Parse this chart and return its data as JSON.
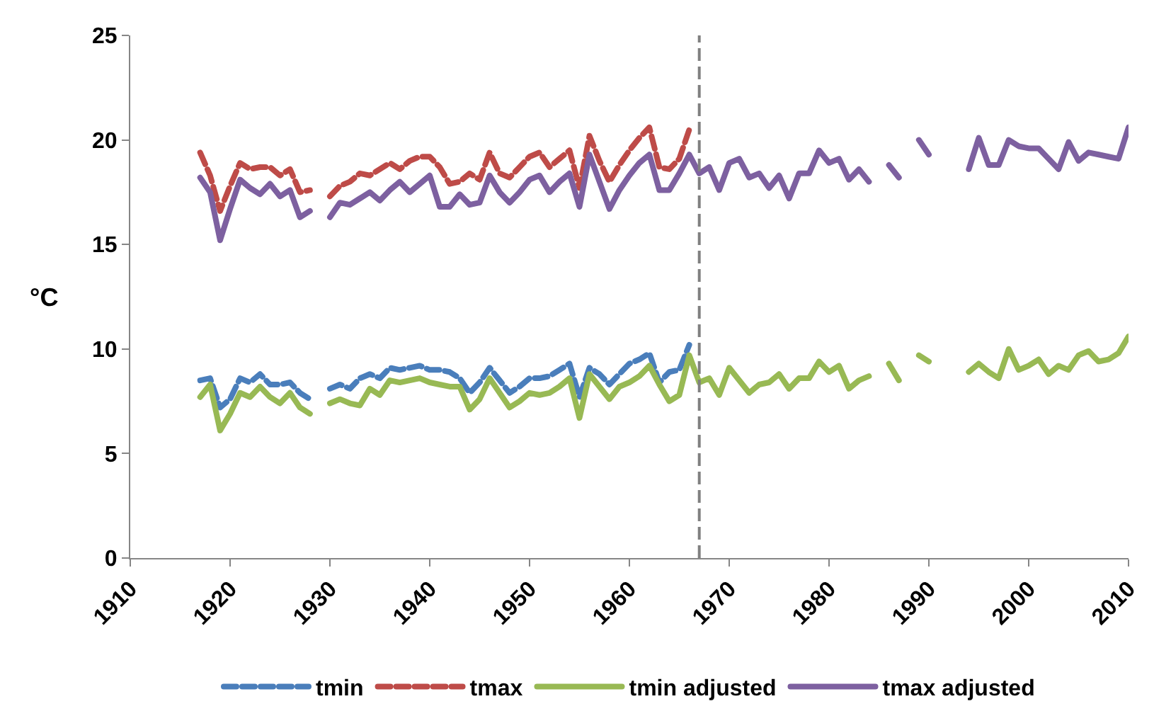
{
  "chart_data": {
    "type": "line",
    "ylabel": "°C",
    "x": [
      1917,
      1918,
      1919,
      1920,
      1921,
      1922,
      1923,
      1924,
      1925,
      1926,
      1927,
      1928,
      1929,
      1930,
      1931,
      1932,
      1933,
      1934,
      1935,
      1936,
      1937,
      1938,
      1939,
      1940,
      1941,
      1942,
      1943,
      1944,
      1945,
      1946,
      1947,
      1948,
      1949,
      1950,
      1951,
      1952,
      1953,
      1954,
      1955,
      1956,
      1957,
      1958,
      1959,
      1960,
      1961,
      1962,
      1963,
      1964,
      1965,
      1966,
      1967,
      1968,
      1969,
      1970,
      1971,
      1972,
      1973,
      1974,
      1975,
      1976,
      1977,
      1978,
      1979,
      1980,
      1981,
      1982,
      1983,
      1984,
      1985,
      1986,
      1987,
      1988,
      1989,
      1990,
      1991,
      1992,
      1993,
      1994,
      1995,
      1996,
      1997,
      1998,
      1999,
      2000,
      2001,
      2002,
      2003,
      2004,
      2005,
      2006,
      2007,
      2008,
      2009,
      2010
    ],
    "series": [
      {
        "name": "tmin",
        "color": "#4a7ebb",
        "line_style": "dashed",
        "values": [
          8.5,
          8.6,
          7.2,
          7.6,
          8.6,
          8.4,
          8.8,
          8.3,
          8.3,
          8.4,
          7.9,
          7.6,
          null,
          8.1,
          8.3,
          8.1,
          8.6,
          8.8,
          8.6,
          9.1,
          9.0,
          9.1,
          9.2,
          9.0,
          9.0,
          8.9,
          8.6,
          7.9,
          8.4,
          9.1,
          8.5,
          7.9,
          8.2,
          8.6,
          8.6,
          8.7,
          9.0,
          9.3,
          7.7,
          9.1,
          8.8,
          8.3,
          8.8,
          9.3,
          9.5,
          9.8,
          8.4,
          8.9,
          9.0,
          10.2,
          null,
          null,
          null,
          null,
          null,
          null,
          null,
          null,
          null,
          null,
          null,
          null,
          null,
          null,
          null,
          null,
          null,
          null,
          null,
          null,
          null,
          null,
          null,
          null,
          null,
          null,
          null,
          null,
          null,
          null,
          null,
          null,
          null,
          null,
          null,
          null,
          null,
          null,
          null,
          null,
          null,
          null,
          null,
          null
        ]
      },
      {
        "name": "tmax",
        "color": "#be4b48",
        "line_style": "dashed",
        "values": [
          19.4,
          18.3,
          16.6,
          17.8,
          18.9,
          18.6,
          18.7,
          18.7,
          18.3,
          18.6,
          17.5,
          17.6,
          null,
          17.3,
          17.8,
          18.0,
          18.4,
          18.3,
          18.6,
          18.9,
          18.6,
          19.0,
          19.2,
          19.2,
          18.7,
          17.9,
          18.0,
          18.4,
          18.1,
          19.4,
          18.4,
          18.2,
          18.7,
          19.2,
          19.4,
          18.7,
          19.1,
          19.5,
          17.7,
          20.2,
          19.0,
          18.0,
          18.8,
          19.5,
          20.1,
          20.6,
          18.7,
          18.6,
          19.1,
          20.5,
          null,
          null,
          null,
          null,
          null,
          null,
          null,
          null,
          null,
          null,
          null,
          null,
          null,
          null,
          null,
          null,
          null,
          null,
          null,
          null,
          null,
          null,
          null,
          null,
          null,
          null,
          null,
          null,
          null,
          null,
          null,
          null,
          null,
          null,
          null,
          null,
          null,
          null,
          null,
          null,
          null,
          null,
          null,
          null
        ]
      },
      {
        "name": "tmin adjusted",
        "color": "#98b954",
        "line_style": "solid",
        "values": [
          7.7,
          8.3,
          6.1,
          6.9,
          7.9,
          7.7,
          8.2,
          7.7,
          7.4,
          7.9,
          7.2,
          6.9,
          null,
          7.4,
          7.6,
          7.4,
          7.3,
          8.1,
          7.8,
          8.5,
          8.4,
          8.5,
          8.6,
          8.4,
          8.3,
          8.2,
          8.2,
          7.1,
          7.6,
          8.6,
          7.9,
          7.2,
          7.5,
          7.9,
          7.8,
          7.9,
          8.2,
          8.6,
          6.7,
          8.8,
          8.2,
          7.6,
          8.2,
          8.4,
          8.7,
          9.2,
          8.3,
          7.5,
          7.8,
          9.7,
          8.4,
          8.6,
          7.8,
          9.1,
          8.5,
          7.9,
          8.3,
          8.4,
          8.8,
          8.1,
          8.6,
          8.6,
          9.4,
          8.9,
          9.2,
          8.1,
          8.5,
          8.7,
          null,
          9.3,
          8.5,
          null,
          9.7,
          9.4,
          null,
          null,
          null,
          8.9,
          9.3,
          8.9,
          8.6,
          10.0,
          9.0,
          9.2,
          9.5,
          8.8,
          9.2,
          9.0,
          9.7,
          9.9,
          9.4,
          9.5,
          9.8,
          10.6
        ]
      },
      {
        "name": "tmax adjusted",
        "color": "#7d60a0",
        "line_style": "solid",
        "values": [
          18.2,
          17.5,
          15.2,
          16.7,
          18.1,
          17.7,
          17.4,
          17.9,
          17.3,
          17.6,
          16.3,
          16.6,
          null,
          16.3,
          17.0,
          16.9,
          17.2,
          17.5,
          17.1,
          17.6,
          18.0,
          17.5,
          17.9,
          18.3,
          16.8,
          16.8,
          17.4,
          16.9,
          17.0,
          18.3,
          17.5,
          17.0,
          17.5,
          18.1,
          18.3,
          17.5,
          18.0,
          18.4,
          16.8,
          19.3,
          18.0,
          16.7,
          17.6,
          18.3,
          18.9,
          19.3,
          17.6,
          17.6,
          18.4,
          19.3,
          18.4,
          18.7,
          17.6,
          18.9,
          19.1,
          18.2,
          18.4,
          17.7,
          18.3,
          17.2,
          18.4,
          18.4,
          19.5,
          18.9,
          19.1,
          18.1,
          18.6,
          18.0,
          null,
          18.8,
          18.2,
          null,
          20.0,
          19.3,
          null,
          null,
          null,
          18.6,
          20.1,
          18.8,
          18.8,
          20.0,
          19.7,
          19.6,
          19.6,
          19.1,
          18.6,
          19.9,
          19.0,
          19.4,
          19.3,
          19.2,
          19.1,
          20.6
        ]
      }
    ],
    "xlim": [
      1910,
      2010
    ],
    "xticks": [
      1910,
      1920,
      1930,
      1940,
      1950,
      1960,
      1970,
      1980,
      1990,
      2000,
      2010
    ],
    "ylim": [
      0,
      25
    ],
    "yticks": [
      0,
      5,
      10,
      15,
      20,
      25
    ],
    "ref_lines": [
      {
        "axis": "x",
        "value": 1967,
        "color": "#808080",
        "line_style": "dashed"
      }
    ],
    "grid": false,
    "legend": "bottom",
    "marker": "none"
  }
}
